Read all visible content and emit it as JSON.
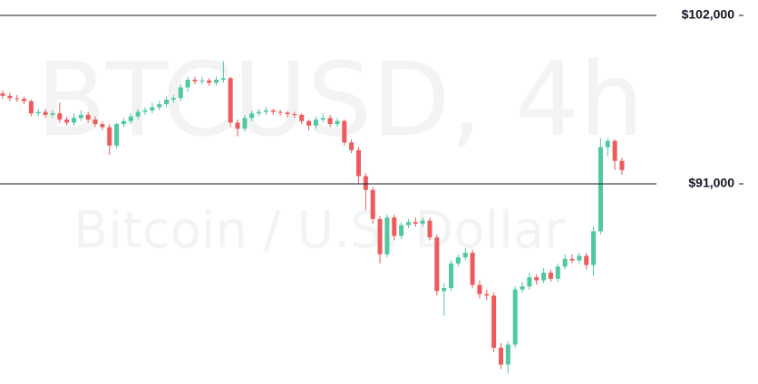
{
  "chart_data": {
    "type": "candlestick",
    "watermark_title": "BTCUSD, 4h",
    "watermark_subtitle": "Bitcoin / U.S. Dollar",
    "up_color": "#50c8a0",
    "down_color": "#ef5b5b",
    "ylim": [
      77930,
      103005
    ],
    "yticks": [
      {
        "value": 102000,
        "label": "$102,000"
      },
      {
        "value": 91000,
        "label": "$91,000"
      }
    ],
    "grid": true,
    "open": [
      96900,
      96750,
      96600,
      96550,
      96400,
      95600,
      95700,
      95500,
      95600,
      95200,
      95000,
      95300,
      95500,
      95200,
      94900,
      94700,
      93500,
      94900,
      95100,
      95400,
      95700,
      95800,
      96000,
      96200,
      96500,
      96600,
      97300,
      97800,
      97700,
      97750,
      97600,
      97800,
      97900,
      95000,
      94600,
      95300,
      95600,
      95700,
      95800,
      95700,
      95650,
      95550,
      95500,
      95100,
      94800,
      95200,
      95300,
      94900,
      95100,
      93700,
      93200,
      91500,
      90600,
      88700,
      86400,
      88800,
      87600,
      88300,
      88500,
      88400,
      88600,
      87500,
      84000,
      84200,
      85800,
      86200,
      86500,
      84400,
      83800,
      83700,
      80300,
      79200,
      80500,
      84100,
      84300,
      84900,
      84700,
      85200,
      84800,
      85600,
      86100,
      86000,
      86300,
      85700,
      87900,
      93400,
      93800,
      92500
    ],
    "high": [
      97100,
      96950,
      96800,
      96700,
      96500,
      95900,
      95900,
      95800,
      96300,
      95400,
      95600,
      95800,
      95700,
      95400,
      95100,
      94900,
      95000,
      95300,
      95600,
      95900,
      96000,
      96300,
      96400,
      96700,
      96800,
      97500,
      98000,
      98000,
      98000,
      97900,
      98000,
      99000,
      98000,
      95200,
      95500,
      95800,
      95900,
      96000,
      95900,
      95850,
      95750,
      95700,
      95600,
      95200,
      95400,
      95600,
      95500,
      95300,
      95200,
      93900,
      93400,
      91700,
      90800,
      88900,
      89000,
      89000,
      88500,
      88700,
      88800,
      88800,
      88800,
      87700,
      84500,
      86000,
      86400,
      86800,
      86700,
      84700,
      84100,
      83900,
      80600,
      80700,
      84300,
      84600,
      85200,
      85100,
      85500,
      85400,
      85800,
      86400,
      86400,
      86500,
      86500,
      88200,
      94000,
      94000,
      93900,
      92700
    ],
    "low": [
      96550,
      96400,
      96350,
      96200,
      95400,
      95400,
      95300,
      95300,
      95000,
      94800,
      94800,
      95100,
      95000,
      94700,
      94500,
      92900,
      93300,
      94700,
      94900,
      95200,
      95500,
      95600,
      95800,
      96000,
      96300,
      96400,
      97000,
      97500,
      97500,
      97400,
      97400,
      97600,
      94700,
      94100,
      94400,
      95100,
      95400,
      95500,
      95500,
      95450,
      95350,
      95300,
      94900,
      94500,
      94600,
      95000,
      94700,
      94700,
      93500,
      93000,
      91000,
      89300,
      88400,
      85800,
      86200,
      87300,
      87400,
      88100,
      88200,
      88200,
      87300,
      83700,
      82400,
      84000,
      85600,
      86000,
      84200,
      83500,
      83400,
      80000,
      78900,
      78600,
      80300,
      83900,
      84100,
      84400,
      84500,
      84600,
      84600,
      85400,
      85800,
      85800,
      85400,
      85000,
      87700,
      92800,
      91900,
      91600
    ],
    "close": [
      96750,
      96600,
      96550,
      96400,
      95600,
      95700,
      95500,
      95600,
      95200,
      95000,
      95300,
      95500,
      95200,
      94900,
      94700,
      93500,
      94900,
      95100,
      95400,
      95700,
      95800,
      96000,
      96200,
      96500,
      96600,
      97300,
      97800,
      97700,
      97750,
      97600,
      97800,
      97900,
      95000,
      94600,
      95300,
      95600,
      95700,
      95800,
      95700,
      95650,
      95550,
      95500,
      95100,
      94800,
      95200,
      95300,
      94900,
      95100,
      93700,
      93200,
      91500,
      90600,
      88700,
      86400,
      88800,
      87600,
      88300,
      88500,
      88400,
      88600,
      87500,
      84000,
      84200,
      85800,
      86200,
      86500,
      84400,
      83800,
      83700,
      80300,
      79200,
      80500,
      84100,
      84300,
      84900,
      84700,
      85200,
      84800,
      85600,
      86100,
      86000,
      86300,
      85700,
      87900,
      93400,
      93800,
      92500,
      91900
    ]
  }
}
